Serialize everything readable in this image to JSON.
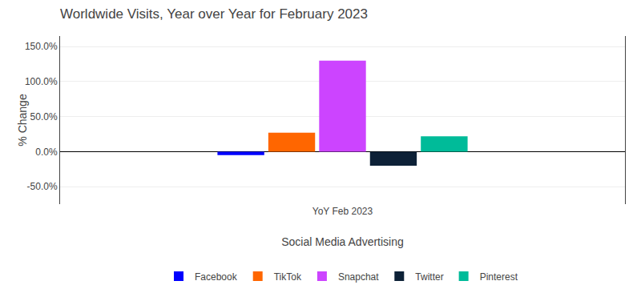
{
  "chart_data": {
    "type": "bar",
    "title": "Worldwide Visits, Year over Year for February 2023",
    "xlabel": "Social Media Advertising",
    "ylabel": "% Change",
    "categories": [
      "YoY Feb 2023"
    ],
    "series": [
      {
        "name": "Facebook",
        "color": "#0000ff",
        "values": [
          -5.0
        ]
      },
      {
        "name": "TikTok",
        "color": "#ff6600",
        "values": [
          27.0
        ]
      },
      {
        "name": "Snapchat",
        "color": "#cc44ff",
        "values": [
          130.0
        ]
      },
      {
        "name": "Twitter",
        "color": "#0d2137",
        "values": [
          -20.0
        ]
      },
      {
        "name": "Pinterest",
        "color": "#00bb99",
        "values": [
          22.0
        ]
      }
    ],
    "ylim": [
      -75,
      165
    ],
    "yticks": [
      {
        "value": -50.0,
        "label": "-50.0%"
      },
      {
        "value": 0.0,
        "label": "0.0%"
      },
      {
        "value": 50.0,
        "label": "50.0%"
      },
      {
        "value": 100.0,
        "label": "100.0%"
      },
      {
        "value": 150.0,
        "label": "150.0%"
      }
    ],
    "grid": true,
    "legend": "bottom"
  }
}
